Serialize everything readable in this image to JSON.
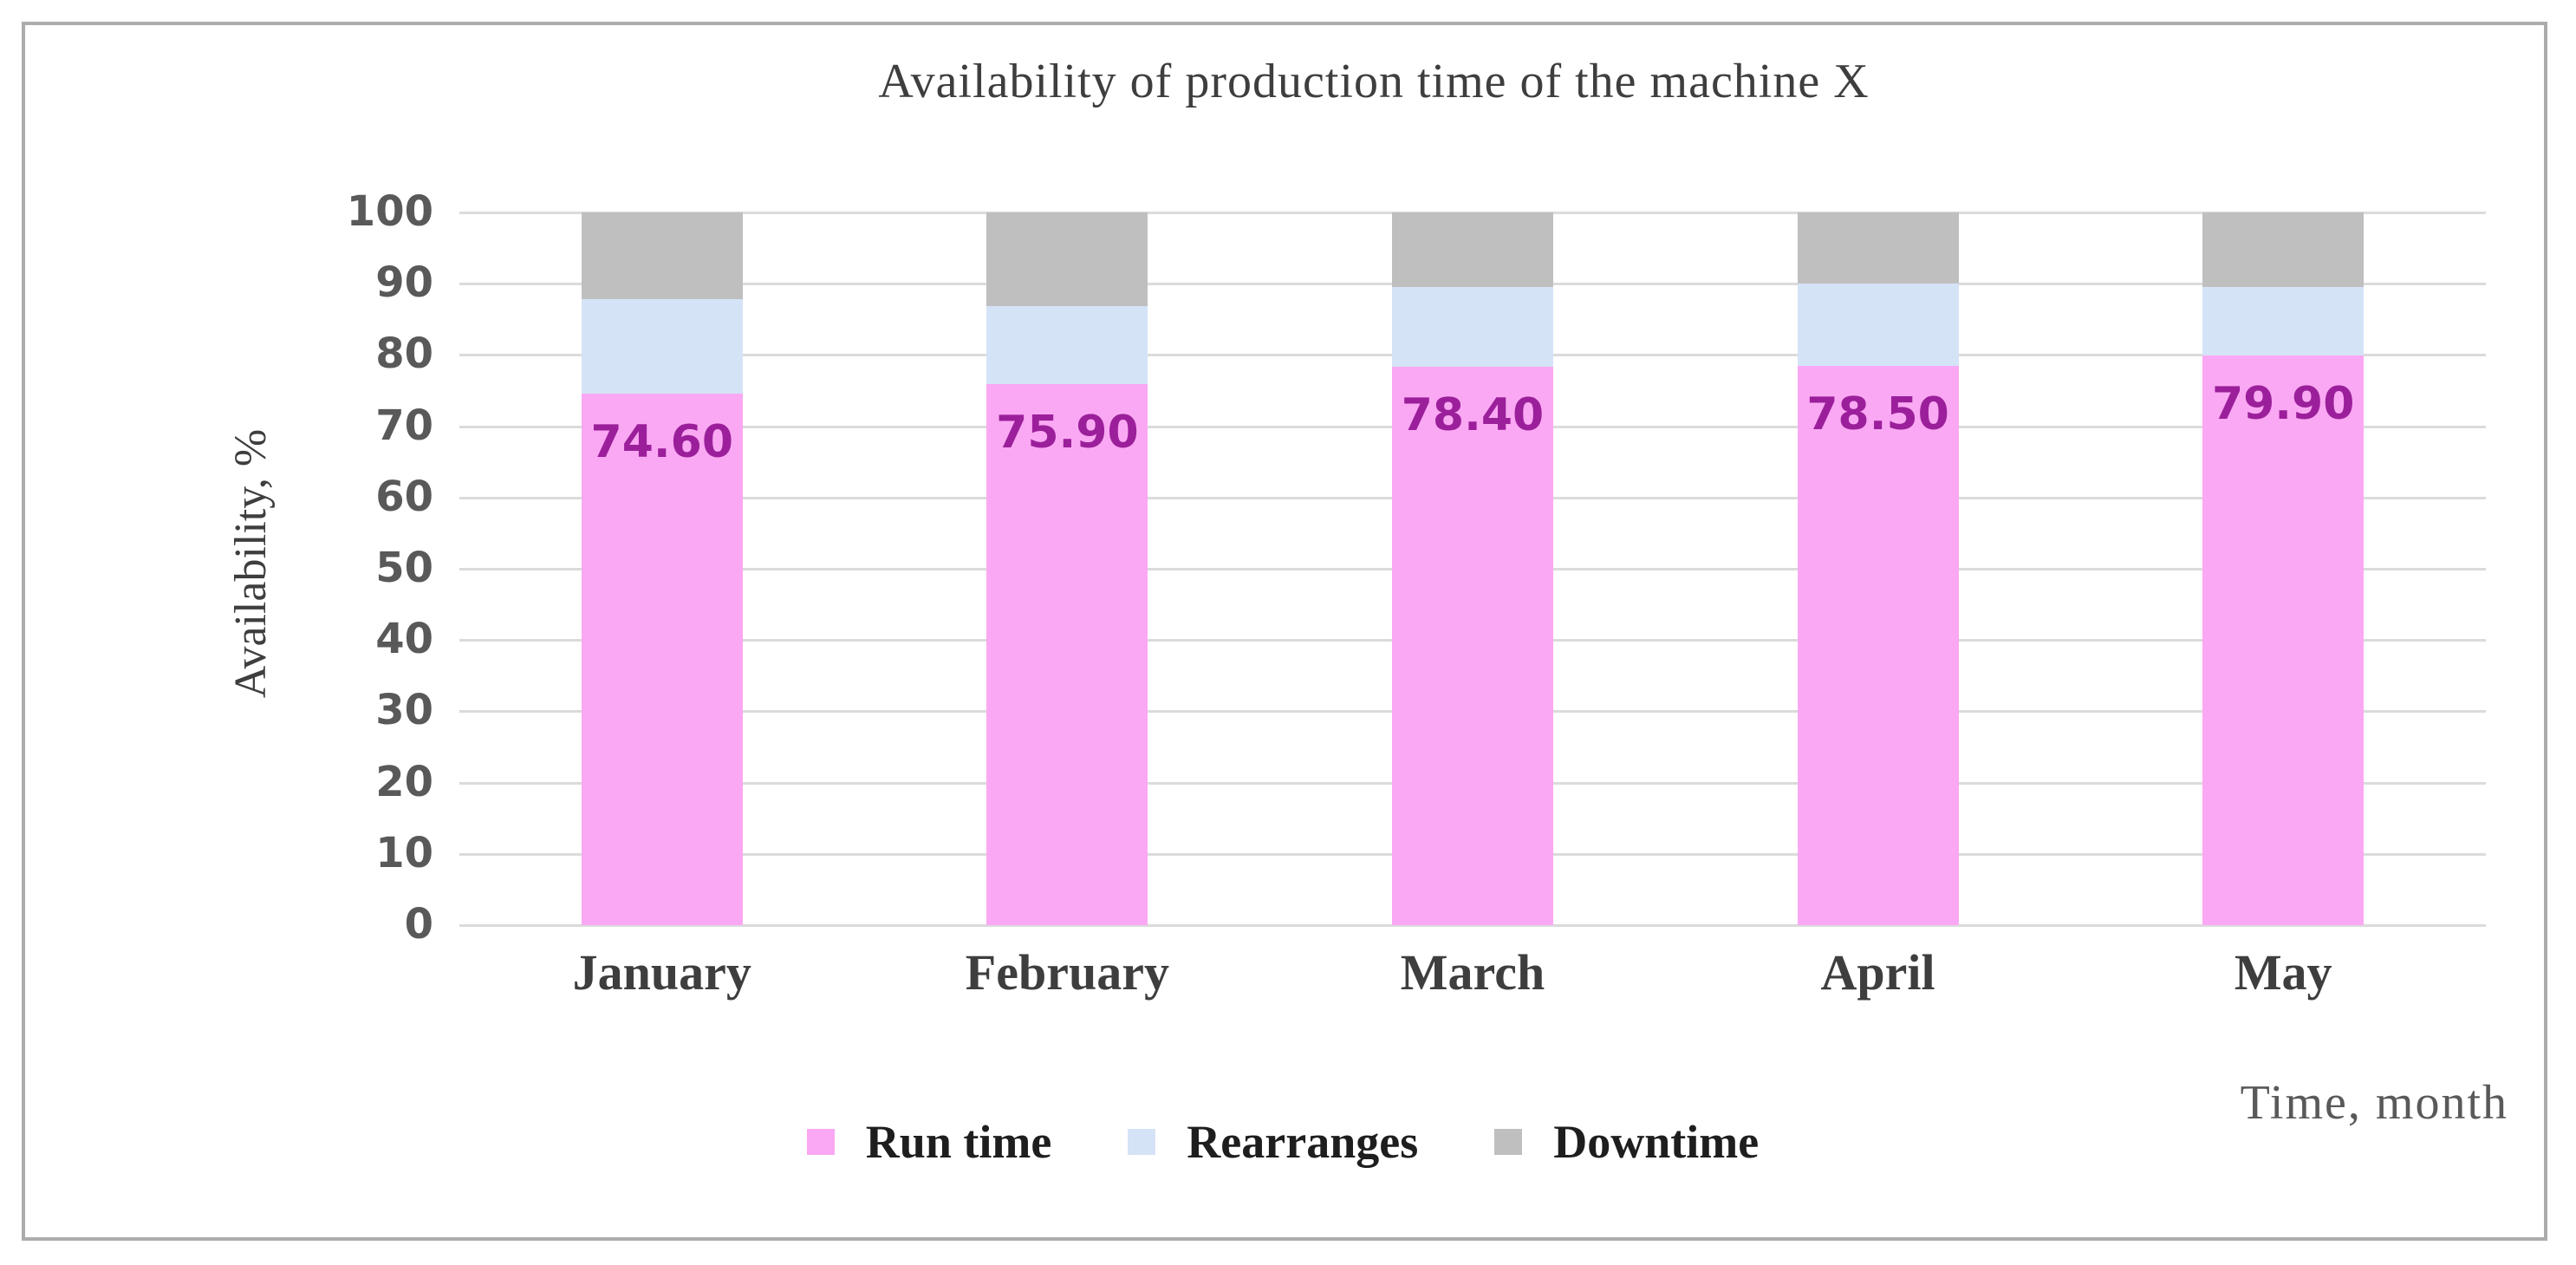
{
  "figure": {
    "background": "#ffffff",
    "frame_border_color": "#acacac"
  },
  "chart_data": {
    "type": "bar",
    "stacked": true,
    "title": "Availability of production time of the machine X",
    "categories": [
      "January",
      "February",
      "March",
      "April",
      "May"
    ],
    "series": [
      {
        "name": "Run time",
        "color": "#faa8f3",
        "values": [
          74.6,
          75.9,
          78.4,
          78.5,
          79.9
        ],
        "data_labels": [
          "74.60",
          "75.90",
          "78.40",
          "78.50",
          "79.90"
        ],
        "data_label_color": "#9b1f9b"
      },
      {
        "name": "Rearranges",
        "color": "#d5e3f7",
        "values": [
          13.2,
          11.0,
          11.1,
          11.5,
          9.7
        ]
      },
      {
        "name": "Downtime",
        "color": "#bfbfbf",
        "values": [
          12.2,
          13.1,
          10.5,
          10.0,
          10.4
        ]
      }
    ],
    "ylabel": "Availability, %",
    "xlabel": "Time, month",
    "ylim": [
      0,
      100
    ],
    "yticks": [
      0,
      10,
      20,
      30,
      40,
      50,
      60,
      70,
      80,
      90,
      100
    ],
    "grid": "horizontal",
    "gridline_color": "#dbdbdb",
    "legend_position": "bottom",
    "tick_label_color": "#595959",
    "title_color": "#3e3e3e"
  }
}
